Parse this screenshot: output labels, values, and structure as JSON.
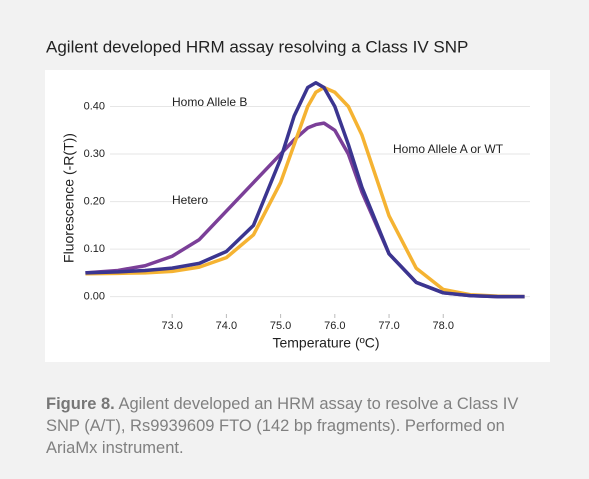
{
  "chart_data": {
    "type": "line",
    "title": "Agilent developed HRM assay resolving a Class IV SNP",
    "xlabel": "Temperature (ºC)",
    "ylabel": "Fluorescence (-R(T))",
    "x": [
      71.4,
      72,
      72.5,
      73,
      73.5,
      74,
      74.5,
      75,
      75.25,
      75.5,
      75.65,
      75.8,
      76,
      76.25,
      76.5,
      77,
      77.5,
      78,
      78.5,
      79,
      79.5
    ],
    "series": [
      {
        "name": "Hetero",
        "color": "#7b3f98",
        "values": [
          0.05,
          0.055,
          0.065,
          0.085,
          0.12,
          0.18,
          0.24,
          0.3,
          0.33,
          0.355,
          0.362,
          0.365,
          0.35,
          0.3,
          0.22,
          0.09,
          0.03,
          0.008,
          0.002,
          0,
          0
        ]
      },
      {
        "name": "Homo Allele A or WT",
        "color": "#f5b332",
        "values": [
          0.048,
          0.049,
          0.05,
          0.053,
          0.062,
          0.082,
          0.13,
          0.24,
          0.32,
          0.4,
          0.43,
          0.44,
          0.43,
          0.4,
          0.34,
          0.17,
          0.06,
          0.015,
          0.004,
          0.001,
          0
        ]
      },
      {
        "name": "Homo Allele B",
        "color": "#3b3590",
        "values": [
          0.05,
          0.052,
          0.055,
          0.06,
          0.07,
          0.095,
          0.15,
          0.29,
          0.38,
          0.44,
          0.45,
          0.44,
          0.4,
          0.32,
          0.23,
          0.09,
          0.03,
          0.008,
          0.002,
          0,
          0
        ]
      }
    ],
    "xlim": [
      71.3,
      79.6
    ],
    "xticks": [
      {
        "value": 73,
        "label": "73.0"
      },
      {
        "value": 74,
        "label": "74.0"
      },
      {
        "value": 75,
        "label": "75.0"
      },
      {
        "value": 76,
        "label": "76.0"
      },
      {
        "value": 77,
        "label": "77.0"
      },
      {
        "value": 78,
        "label": "78.0"
      }
    ],
    "ylim": [
      -0.045,
      0.46
    ],
    "yticks": [
      {
        "value": 0,
        "label": "0.00"
      },
      {
        "value": 0.1,
        "label": "0.10"
      },
      {
        "value": 0.2,
        "label": "0.20"
      },
      {
        "value": 0.3,
        "label": "0.30"
      },
      {
        "value": 0.4,
        "label": "0.40"
      }
    ],
    "grid": true
  },
  "caption": {
    "label": "Figure 8.",
    "text": "Agilent developed an HRM assay to resolve a Class IV SNP (A/T), Rs9939609 FTO (142 bp fragments). Performed on AriaMx instrument."
  }
}
